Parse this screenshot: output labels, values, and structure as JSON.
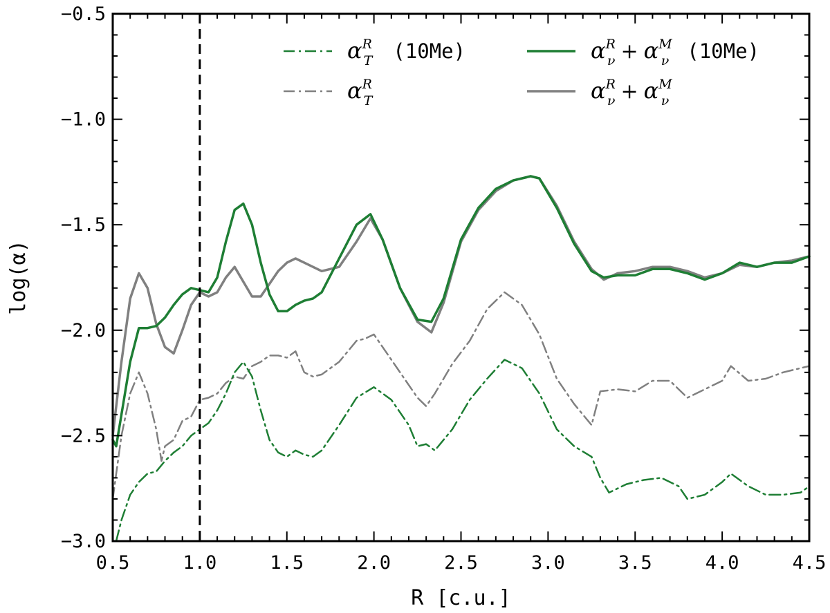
{
  "chart_data": {
    "type": "line",
    "xlabel": "R [c.u.]",
    "ylabel": "log(α)",
    "xlim": [
      0.5,
      4.5
    ],
    "ylim": [
      -3.0,
      -0.5
    ],
    "xticks": [
      "0.5",
      "1.0",
      "1.5",
      "2.0",
      "2.5",
      "3.0",
      "3.5",
      "4.0",
      "4.5"
    ],
    "yticks": [
      "-3.0",
      "-2.5",
      "-2.0",
      "-1.5",
      "-1.0",
      "-0.5"
    ],
    "vline_x": 1.0,
    "grid": false,
    "legend_placement": "top-right",
    "series": [
      {
        "key": "gray_solid",
        "name": "α_ν^R + α_ν^M",
        "color": "#808080",
        "style": "solid",
        "x": [
          0.5,
          0.55,
          0.6,
          0.65,
          0.7,
          0.75,
          0.8,
          0.85,
          0.9,
          0.95,
          1.0,
          1.05,
          1.1,
          1.15,
          1.2,
          1.25,
          1.3,
          1.35,
          1.4,
          1.45,
          1.5,
          1.55,
          1.6,
          1.7,
          1.8,
          1.9,
          1.98,
          2.05,
          2.15,
          2.25,
          2.33,
          2.4,
          2.5,
          2.6,
          2.7,
          2.8,
          2.9,
          2.95,
          3.05,
          3.15,
          3.25,
          3.32,
          3.4,
          3.5,
          3.6,
          3.7,
          3.8,
          3.9,
          4.0,
          4.1,
          4.2,
          4.3,
          4.4,
          4.5
        ],
        "y": [
          -2.5,
          -2.15,
          -1.85,
          -1.73,
          -1.8,
          -1.97,
          -2.08,
          -2.11,
          -2.0,
          -1.88,
          -1.82,
          -1.84,
          -1.82,
          -1.75,
          -1.7,
          -1.77,
          -1.84,
          -1.84,
          -1.78,
          -1.72,
          -1.68,
          -1.66,
          -1.68,
          -1.72,
          -1.7,
          -1.58,
          -1.47,
          -1.57,
          -1.8,
          -1.96,
          -2.01,
          -1.87,
          -1.58,
          -1.43,
          -1.34,
          -1.29,
          -1.27,
          -1.28,
          -1.41,
          -1.58,
          -1.71,
          -1.76,
          -1.73,
          -1.72,
          -1.7,
          -1.7,
          -1.72,
          -1.75,
          -1.73,
          -1.69,
          -1.7,
          -1.68,
          -1.67,
          -1.65
        ]
      },
      {
        "key": "green_solid",
        "name": "α_ν^R + α_ν^M (10Me)",
        "color": "#1e7e34",
        "style": "solid",
        "x": [
          0.5,
          0.52,
          0.55,
          0.6,
          0.65,
          0.7,
          0.75,
          0.8,
          0.85,
          0.9,
          0.95,
          1.0,
          1.05,
          1.1,
          1.15,
          1.2,
          1.25,
          1.3,
          1.35,
          1.4,
          1.45,
          1.5,
          1.55,
          1.6,
          1.65,
          1.7,
          1.8,
          1.9,
          1.98,
          2.05,
          2.15,
          2.25,
          2.33,
          2.4,
          2.5,
          2.6,
          2.7,
          2.8,
          2.9,
          2.95,
          3.05,
          3.15,
          3.25,
          3.32,
          3.4,
          3.5,
          3.6,
          3.7,
          3.8,
          3.9,
          4.0,
          4.1,
          4.2,
          4.3,
          4.4,
          4.5
        ],
        "y": [
          -2.52,
          -2.55,
          -2.4,
          -2.15,
          -1.99,
          -1.99,
          -1.98,
          -1.94,
          -1.88,
          -1.83,
          -1.8,
          -1.81,
          -1.82,
          -1.75,
          -1.58,
          -1.43,
          -1.4,
          -1.5,
          -1.68,
          -1.83,
          -1.91,
          -1.91,
          -1.88,
          -1.86,
          -1.85,
          -1.82,
          -1.66,
          -1.5,
          -1.45,
          -1.57,
          -1.8,
          -1.95,
          -1.96,
          -1.85,
          -1.57,
          -1.42,
          -1.33,
          -1.29,
          -1.27,
          -1.28,
          -1.42,
          -1.59,
          -1.72,
          -1.75,
          -1.74,
          -1.74,
          -1.71,
          -1.71,
          -1.73,
          -1.76,
          -1.73,
          -1.68,
          -1.7,
          -1.68,
          -1.68,
          -1.65
        ]
      },
      {
        "key": "gray_dashdot",
        "name": "α_T^R",
        "color": "#808080",
        "style": "dashdot",
        "x": [
          0.5,
          0.55,
          0.6,
          0.65,
          0.7,
          0.75,
          0.78,
          0.8,
          0.85,
          0.9,
          0.95,
          1.0,
          1.05,
          1.1,
          1.15,
          1.2,
          1.25,
          1.3,
          1.35,
          1.4,
          1.45,
          1.5,
          1.55,
          1.6,
          1.65,
          1.7,
          1.8,
          1.9,
          1.95,
          2.0,
          2.05,
          2.15,
          2.25,
          2.3,
          2.35,
          2.45,
          2.55,
          2.65,
          2.75,
          2.85,
          2.95,
          3.05,
          3.15,
          3.25,
          3.3,
          3.4,
          3.5,
          3.6,
          3.7,
          3.8,
          3.9,
          4.0,
          4.05,
          4.15,
          4.25,
          4.35,
          4.45,
          4.5
        ],
        "y": [
          -2.8,
          -2.5,
          -2.3,
          -2.2,
          -2.3,
          -2.47,
          -2.62,
          -2.55,
          -2.52,
          -2.43,
          -2.41,
          -2.33,
          -2.32,
          -2.3,
          -2.25,
          -2.22,
          -2.23,
          -2.17,
          -2.15,
          -2.12,
          -2.12,
          -2.13,
          -2.1,
          -2.2,
          -2.22,
          -2.21,
          -2.15,
          -2.05,
          -2.04,
          -2.02,
          -2.08,
          -2.2,
          -2.32,
          -2.36,
          -2.3,
          -2.16,
          -2.05,
          -1.9,
          -1.82,
          -1.88,
          -2.02,
          -2.23,
          -2.35,
          -2.45,
          -2.29,
          -2.28,
          -2.29,
          -2.24,
          -2.24,
          -2.32,
          -2.28,
          -2.24,
          -2.17,
          -2.24,
          -2.23,
          -2.2,
          -2.18,
          -2.17
        ]
      },
      {
        "key": "green_dashdot",
        "name": "α_T^R (10Me)",
        "color": "#1e7e34",
        "style": "dashdot",
        "x": [
          0.52,
          0.55,
          0.6,
          0.65,
          0.7,
          0.75,
          0.8,
          0.85,
          0.9,
          0.95,
          1.0,
          1.05,
          1.1,
          1.15,
          1.2,
          1.25,
          1.3,
          1.35,
          1.4,
          1.45,
          1.5,
          1.55,
          1.6,
          1.65,
          1.7,
          1.8,
          1.9,
          2.0,
          2.1,
          2.2,
          2.25,
          2.3,
          2.35,
          2.45,
          2.55,
          2.65,
          2.75,
          2.85,
          2.95,
          3.05,
          3.15,
          3.25,
          3.3,
          3.35,
          3.45,
          3.55,
          3.65,
          3.75,
          3.8,
          3.9,
          4.0,
          4.05,
          4.15,
          4.25,
          4.35,
          4.45,
          4.5
        ],
        "y": [
          -3.0,
          -2.9,
          -2.78,
          -2.72,
          -2.68,
          -2.67,
          -2.62,
          -2.58,
          -2.55,
          -2.5,
          -2.47,
          -2.44,
          -2.38,
          -2.3,
          -2.2,
          -2.15,
          -2.22,
          -2.38,
          -2.52,
          -2.58,
          -2.6,
          -2.57,
          -2.59,
          -2.6,
          -2.57,
          -2.45,
          -2.32,
          -2.27,
          -2.33,
          -2.45,
          -2.55,
          -2.54,
          -2.57,
          -2.47,
          -2.33,
          -2.23,
          -2.14,
          -2.18,
          -2.3,
          -2.47,
          -2.55,
          -2.6,
          -2.7,
          -2.77,
          -2.73,
          -2.71,
          -2.7,
          -2.74,
          -2.8,
          -2.78,
          -2.72,
          -2.68,
          -2.74,
          -2.78,
          -2.78,
          -2.77,
          -2.74
        ]
      }
    ],
    "legend": [
      {
        "series": "green_dashdot",
        "label": "α",
        "sub": "T",
        "sup": "R",
        "suffix": "(10Me)",
        "col": 0,
        "row": 0
      },
      {
        "series": "gray_dashdot",
        "label": "α",
        "sub": "T",
        "sup": "R",
        "suffix": "",
        "col": 0,
        "row": 1
      },
      {
        "series": "green_solid",
        "label": "α",
        "sub": "ν",
        "sup": "R",
        "plus": "+",
        "label2": "α",
        "sub2": "ν",
        "sup2": "M",
        "suffix": "(10Me)",
        "col": 1,
        "row": 0
      },
      {
        "series": "gray_solid",
        "label": "α",
        "sub": "ν",
        "sup": "R",
        "plus": "+",
        "label2": "α",
        "sub2": "ν",
        "sup2": "M",
        "suffix": "",
        "col": 1,
        "row": 1
      }
    ]
  }
}
